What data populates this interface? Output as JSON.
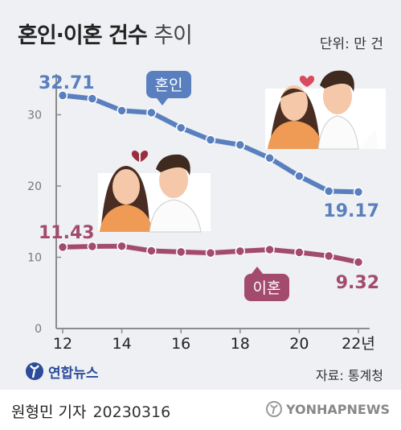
{
  "title": {
    "bold": "혼인·이혼 건수",
    "light": "추이"
  },
  "unit": "단위: 만 건",
  "chart_data": {
    "type": "line",
    "x": [
      12,
      13,
      14,
      15,
      16,
      17,
      18,
      19,
      20,
      21,
      22
    ],
    "x_ticks": [
      "12",
      "14",
      "16",
      "18",
      "20",
      "22년"
    ],
    "y_ticks": [
      0,
      10,
      20,
      30
    ],
    "ylim": [
      0,
      35
    ],
    "grid": false,
    "series": [
      {
        "name": "혼인",
        "color": "#5a7fbf",
        "values": [
          32.71,
          32.26,
          30.58,
          30.3,
          28.17,
          26.48,
          25.77,
          23.92,
          21.38,
          19.28,
          19.17
        ],
        "start_label": "32.71",
        "end_label": "19.17"
      },
      {
        "name": "이혼",
        "color": "#a34b6c",
        "values": [
          11.43,
          11.53,
          11.56,
          10.91,
          10.75,
          10.61,
          10.86,
          11.08,
          10.69,
          10.18,
          9.32
        ],
        "start_label": "11.43",
        "end_label": "9.32"
      }
    ]
  },
  "source": "자료: 통계청",
  "logo": {
    "text": "연합뉴스"
  },
  "credit": {
    "author": "원형민 기자",
    "date": "20230316"
  },
  "watermark": "YONHAPNEWS",
  "colors": {
    "marriage": "#5a7fbf",
    "divorce": "#a34b6c",
    "axis": "#8c8c8c"
  },
  "icons": [
    "heart-icon",
    "broken-heart-icon",
    "happy-couple-illustration",
    "upset-couple-illustration",
    "yonhap-logo-icon"
  ]
}
